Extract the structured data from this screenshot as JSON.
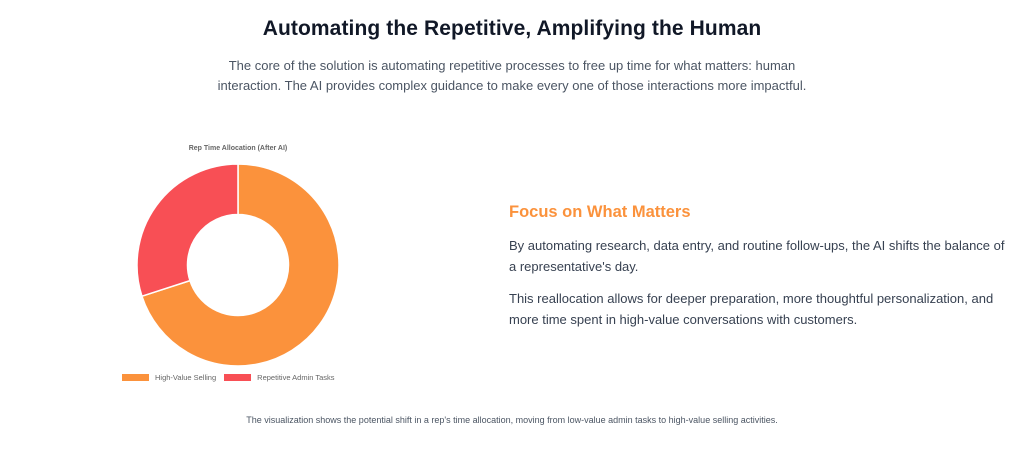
{
  "header": {
    "title": "Automating the Repetitive, Amplifying the Human",
    "intro": "The core of the solution is automating repetitive processes to free up time for what matters: human interaction. The AI provides complex guidance to make every one of those interactions more impactful."
  },
  "chart_data": {
    "type": "pie",
    "variant": "doughnut",
    "title": "Rep Time Allocation (After AI)",
    "categories": [
      "High-Value Selling",
      "Repetitive Admin Tasks"
    ],
    "values": [
      70,
      30
    ],
    "colors": [
      "#fb923c",
      "#f84f55"
    ],
    "legend_position": "bottom",
    "start_angle_deg": 0,
    "direction": "clockwise",
    "cutout_ratio": 0.5
  },
  "legend": {
    "items": [
      {
        "label": "High-Value Selling",
        "color": "#fb923c"
      },
      {
        "label": "Repetitive Admin Tasks",
        "color": "#f84f55"
      }
    ]
  },
  "focus": {
    "title": "Focus on What Matters",
    "paragraphs": [
      "By automating research, data entry, and routine follow-ups, the AI shifts the balance of a representative's day.",
      "This reallocation allows for deeper preparation, more thoughtful personalization, and more time spent in high-value conversations with customers."
    ]
  },
  "caption": "The visualization shows the potential shift in a rep's time allocation, moving from low-value admin tasks to high-value selling activities.",
  "colors": {
    "accent": "#fb923c",
    "secondary": "#f84f55",
    "heading": "#111827",
    "body": "#374151"
  }
}
